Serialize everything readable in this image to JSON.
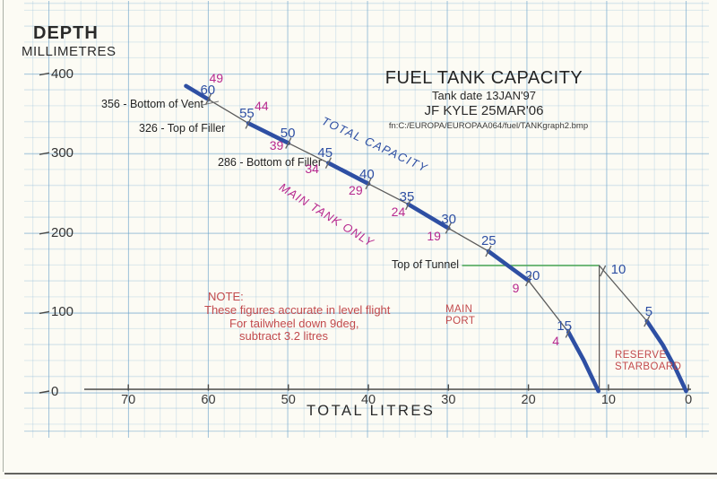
{
  "header": {
    "title": "FUEL TANK CAPACITY",
    "subtitle": "Tank date   13JAN'97",
    "author_line": "JF KYLE 25MAR'06",
    "filename": "fn:C:/EUROPA/EUROPAA064/fuel/TANKgraph2.bmp"
  },
  "axes": {
    "y_title_line1": "DEPTH",
    "y_title_line2": "MILLIMETRES",
    "x_title": "TOTAL LITRES"
  },
  "annotations": {
    "bottom_of_vent": "356 - Bottom of Vent",
    "top_of_filler": "326 - Top of Filler",
    "bottom_of_filler": "286 - Bottom of Filler",
    "total_capacity": "TOTAL CAPACITY",
    "main_tank_only": "MAIN TANK ONLY",
    "top_of_tunnel": "Top of Tunnel",
    "main_port_line1": "MAIN",
    "main_port_line2": "PORT",
    "reserve_line1": "RESERVE",
    "reserve_line2": "STARBOARD",
    "note_line1": "NOTE:",
    "note_line2": "These figures accurate in level flight",
    "note_line3": "For tailwheel down 9deg,",
    "note_line4": "subtract 3.2 litres"
  },
  "colors": {
    "capacity_blue": "#2e4fa3",
    "main_magenta": "#b7298f",
    "note_red": "#c24a4d",
    "tunnel_green": "#4aa653",
    "thin_line": "#5b5b5b",
    "ink": "#2a2a2a"
  },
  "chart_data": {
    "type": "line",
    "title": "FUEL TANK CAPACITY",
    "xlabel": "TOTAL LITRES",
    "ylabel": "DEPTH MILLIMETRES",
    "xlim": [
      75.5,
      0
    ],
    "ylim": [
      0,
      400
    ],
    "x_axis_reversed": true,
    "grid": true,
    "x_ticks": [
      70,
      60,
      50,
      40,
      30,
      20,
      10,
      0
    ],
    "y_ticks": [
      400,
      300,
      200,
      100,
      0
    ],
    "series": [
      {
        "name": "MAIN TANK (TOTAL CAPACITY vs MAIN TANK ONLY)",
        "points": [
          [
            62.8,
            384
          ],
          [
            60,
            367
          ],
          [
            55,
            337
          ],
          [
            50,
            312
          ],
          [
            45,
            287
          ],
          [
            40,
            261
          ],
          [
            35,
            235
          ],
          [
            30,
            205
          ],
          [
            25,
            176
          ],
          [
            22.3,
            156
          ],
          [
            20,
            139
          ],
          [
            15,
            74
          ],
          [
            13.1,
            39
          ],
          [
            11.25,
            0
          ]
        ]
      },
      {
        "name": "RESERVE STARBOARD",
        "points": [
          [
            11.15,
            158
          ],
          [
            5.2,
            88
          ],
          [
            3.2,
            58
          ],
          [
            1.6,
            28
          ],
          [
            0.3,
            0
          ]
        ]
      }
    ],
    "point_labels": [
      {
        "capacity_label": "60",
        "main_label": "49",
        "litres": 60,
        "depth_mm": 367,
        "series": 0
      },
      {
        "capacity_label": "55",
        "main_label": "44",
        "litres": 55,
        "depth_mm": 337,
        "series": 0
      },
      {
        "capacity_label": "50",
        "main_label": "39",
        "litres": 50,
        "depth_mm": 312,
        "series": 0
      },
      {
        "capacity_label": "45",
        "main_label": "34",
        "litres": 45,
        "depth_mm": 287,
        "series": 0
      },
      {
        "capacity_label": "40",
        "main_label": "29",
        "litres": 40,
        "depth_mm": 261,
        "series": 0
      },
      {
        "capacity_label": "35",
        "main_label": "24",
        "litres": 35,
        "depth_mm": 235,
        "series": 0
      },
      {
        "capacity_label": "30",
        "main_label": "19",
        "litres": 30,
        "depth_mm": 205,
        "series": 0
      },
      {
        "capacity_label": "25",
        "main_label": null,
        "litres": 25,
        "depth_mm": 176,
        "series": 0
      },
      {
        "capacity_label": "20",
        "main_label": "9",
        "litres": 20,
        "depth_mm": 139,
        "series": 0
      },
      {
        "capacity_label": "15",
        "main_label": "4",
        "litres": 15,
        "depth_mm": 74,
        "series": 0
      },
      {
        "capacity_label": "10",
        "main_label": null,
        "litres": 11.15,
        "depth_mm": 158,
        "series": 1
      },
      {
        "capacity_label": "5",
        "main_label": null,
        "litres": 5.2,
        "depth_mm": 88,
        "series": 1
      }
    ],
    "reference_lines": {
      "top_of_tunnel_line": {
        "depth_mm": 158,
        "from_litres": 28.3,
        "to_litres": 11.15
      },
      "reserve_divider": {
        "litres": 11.15,
        "from_depth_mm": 158,
        "to_depth_mm": 0
      }
    },
    "key_depths_mm": {
      "bottom_of_vent": 356,
      "top_of_filler": 326,
      "bottom_of_filler": 286
    }
  }
}
